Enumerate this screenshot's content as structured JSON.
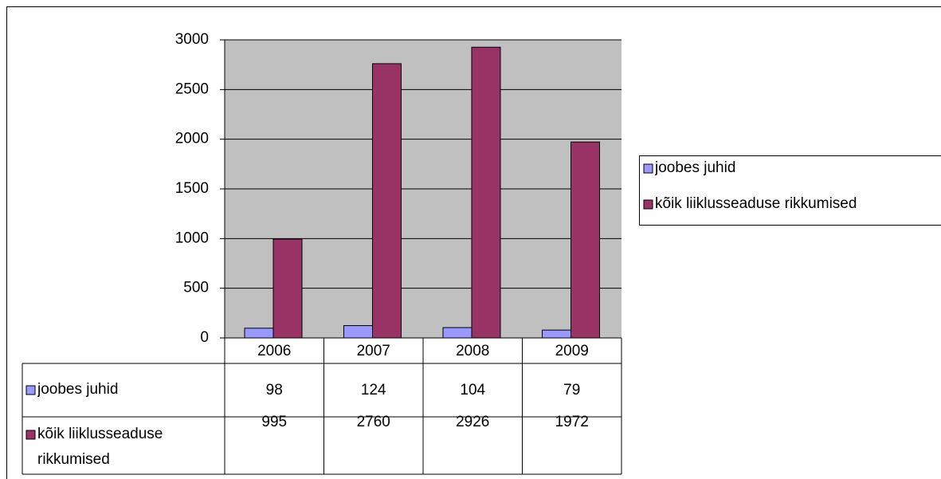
{
  "chart_data": {
    "type": "bar",
    "categories": [
      "2006",
      "2007",
      "2008",
      "2009"
    ],
    "series": [
      {
        "name": "joobes juhid",
        "color": "#9999ff",
        "values": [
          98,
          124,
          104,
          79
        ]
      },
      {
        "name": "kõik liiklusseaduse rikkumised",
        "color": "#993366",
        "values": [
          995,
          2760,
          2926,
          1972
        ]
      }
    ],
    "ylim": [
      0,
      3000
    ],
    "yticks": [
      0,
      500,
      1000,
      1500,
      2000,
      2500,
      3000
    ],
    "grid": true,
    "legend": "right"
  }
}
